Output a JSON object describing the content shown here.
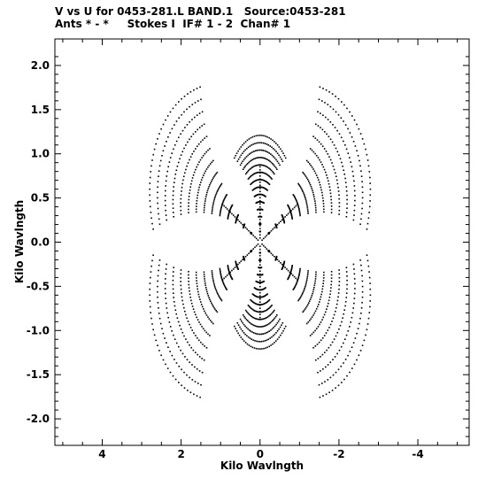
{
  "chart_data": {
    "type": "scatter",
    "title": "V vs U for 0453-281.L BAND.1   Source:0453-281",
    "subtitle": "Ants * - *     Stokes I  IF# 1 - 2  Chan# 1",
    "xlabel": "Kilo Wavlngth",
    "ylabel": "Kilo Wavlngth",
    "xlim": [
      5.2,
      -5.3
    ],
    "ylim": [
      -2.3,
      2.3
    ],
    "x_ticks": [
      4,
      2,
      0,
      -2,
      -4
    ],
    "x_tick_labels": [
      "4",
      "2",
      "0",
      "-2",
      "-4"
    ],
    "y_ticks": [
      2.0,
      1.5,
      1.0,
      0.5,
      0.0,
      -0.5,
      -1.0,
      -1.5,
      -2.0
    ],
    "y_tick_labels": [
      "2.0",
      "1.5",
      "1.0",
      "0.5",
      "0.0",
      "-0.5",
      "-1.0",
      "-1.5",
      "-2.0"
    ],
    "grid": false,
    "point_color": "#000000",
    "uv_coverage": {
      "description_of_pattern": "six-armed star: uv tracks with Hermitian symmetry",
      "arms": [
        {
          "angle_deg": 90,
          "r_min": 0.05,
          "r_max": 1.55,
          "n_tracks": 14,
          "spread_deg": 28
        },
        {
          "angle_deg": 150,
          "r_min": 0.05,
          "r_max": 3.0,
          "n_tracks": 14,
          "spread_deg": 26
        },
        {
          "angle_deg": 30,
          "r_min": 0.05,
          "r_max": 3.0,
          "n_tracks": 14,
          "spread_deg": 26
        }
      ],
      "u_scale_kilo": 1.0,
      "v_scale_kilo": 0.78
    }
  }
}
